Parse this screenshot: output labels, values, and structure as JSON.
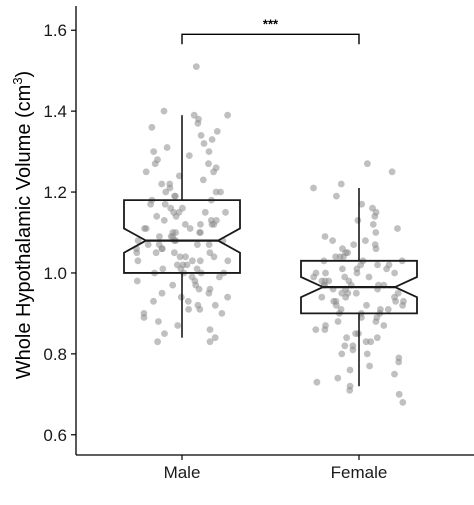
{
  "chart_data": {
    "type": "box",
    "notched": true,
    "title": "",
    "xlabel": "",
    "ylabel": "Whole Hypothalamic Volume (cm",
    "ylabel_superscript": "3",
    "ylabel_close": ")",
    "ylim": [
      0.55,
      1.65
    ],
    "yticks": [
      0.6,
      0.8,
      1.0,
      1.2,
      1.4,
      1.6
    ],
    "ytick_labels": [
      "0.6",
      "0.8",
      "1.0",
      "1.2",
      "1.4",
      "1.6"
    ],
    "grid": false,
    "categories": [
      "Male",
      "Female"
    ],
    "boxes": [
      {
        "name": "Male",
        "q1": 1.0,
        "median": 1.08,
        "q3": 1.18,
        "notch_low": 1.05,
        "notch_high": 1.11,
        "whisker_low": 0.84,
        "whisker_high": 1.39,
        "points": [
          1.51,
          1.4,
          1.39,
          1.39,
          1.38,
          1.37,
          1.36,
          1.35,
          1.34,
          1.33,
          1.32,
          1.31,
          1.3,
          1.3,
          1.29,
          1.28,
          1.27,
          1.27,
          1.26,
          1.25,
          1.25,
          1.24,
          1.23,
          1.22,
          1.22,
          1.21,
          1.2,
          1.2,
          1.19,
          1.19,
          1.18,
          1.18,
          1.17,
          1.17,
          1.16,
          1.16,
          1.15,
          1.15,
          1.15,
          1.14,
          1.14,
          1.13,
          1.13,
          1.13,
          1.12,
          1.12,
          1.12,
          1.11,
          1.11,
          1.11,
          1.1,
          1.1,
          1.1,
          1.09,
          1.09,
          1.09,
          1.08,
          1.08,
          1.08,
          1.08,
          1.07,
          1.07,
          1.07,
          1.06,
          1.06,
          1.06,
          1.05,
          1.05,
          1.05,
          1.04,
          1.04,
          1.04,
          1.03,
          1.03,
          1.03,
          1.02,
          1.02,
          1.02,
          1.01,
          1.01,
          1.01,
          1.0,
          1.0,
          1.0,
          0.99,
          0.99,
          0.98,
          0.98,
          0.97,
          0.97,
          0.96,
          0.96,
          0.95,
          0.95,
          0.94,
          0.94,
          0.93,
          0.93,
          0.92,
          0.92,
          0.91,
          0.91,
          0.9,
          0.9,
          0.89,
          0.88,
          0.87,
          0.86,
          0.85,
          0.84,
          0.83,
          0.83,
          1.15,
          1.1,
          1.05,
          1.2,
          1.0,
          1.12,
          1.07,
          1.03
        ]
      },
      {
        "name": "Female",
        "q1": 0.9,
        "median": 0.965,
        "q3": 1.03,
        "notch_low": 0.94,
        "notch_high": 0.99,
        "whisker_low": 0.72,
        "whisker_high": 1.21,
        "points": [
          1.27,
          1.25,
          1.22,
          1.21,
          1.19,
          1.17,
          1.16,
          1.15,
          1.14,
          1.13,
          1.12,
          1.11,
          1.1,
          1.09,
          1.08,
          1.08,
          1.07,
          1.07,
          1.06,
          1.06,
          1.05,
          1.05,
          1.04,
          1.04,
          1.03,
          1.03,
          1.03,
          1.02,
          1.02,
          1.02,
          1.01,
          1.01,
          1.01,
          1.0,
          1.0,
          1.0,
          0.99,
          0.99,
          0.99,
          0.98,
          0.98,
          0.98,
          0.97,
          0.97,
          0.97,
          0.97,
          0.96,
          0.96,
          0.96,
          0.95,
          0.95,
          0.95,
          0.94,
          0.94,
          0.94,
          0.93,
          0.93,
          0.93,
          0.92,
          0.92,
          0.92,
          0.91,
          0.91,
          0.91,
          0.9,
          0.9,
          0.9,
          0.89,
          0.89,
          0.88,
          0.88,
          0.87,
          0.87,
          0.86,
          0.86,
          0.85,
          0.85,
          0.84,
          0.84,
          0.83,
          0.83,
          0.82,
          0.82,
          0.81,
          0.8,
          0.8,
          0.79,
          0.78,
          0.77,
          0.76,
          0.75,
          0.74,
          0.73,
          0.72,
          0.71,
          0.7,
          0.68,
          1.0,
          0.97,
          0.95,
          0.98,
          0.93,
          1.04
        ]
      }
    ],
    "significance": {
      "from": "Male",
      "to": "Female",
      "y": 1.59,
      "label": "***"
    },
    "colors": {
      "points": "#8c8c8c",
      "box_stroke": "#1a1a1a",
      "axis": "#000000",
      "background": "#ffffff"
    }
  }
}
